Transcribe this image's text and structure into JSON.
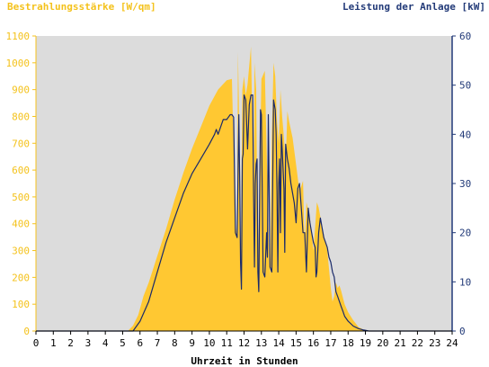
{
  "chart_data": {
    "type": "area",
    "left_axis_title": "Bestrahlungsstärke [W/qm]",
    "right_axis_title": "Leistung der Anlage [kW]",
    "xlabel": "Uhrzeit in Stunden",
    "xlim": [
      0,
      24
    ],
    "xticks": [
      "0",
      "1",
      "2",
      "3",
      "4",
      "5",
      "6",
      "7",
      "8",
      "9",
      "10",
      "11",
      "12",
      "13",
      "14",
      "15",
      "16",
      "17",
      "18",
      "19",
      "20",
      "21",
      "22",
      "23",
      "24"
    ],
    "ylim_left": [
      0,
      1100
    ],
    "yticks_left": [
      "0",
      "100",
      "200",
      "300",
      "400",
      "500",
      "600",
      "700",
      "800",
      "900",
      "1000",
      "1100"
    ],
    "ylim_right": [
      0,
      60
    ],
    "yticks_right": [
      "0",
      "10",
      "20",
      "30",
      "40",
      "50",
      "60"
    ],
    "grid": false,
    "colors": {
      "irradiance_fill": "#ffc832",
      "power_line": "#1a2a6a",
      "plot_background": "#dcdcdc",
      "left_axis": "#f4c21c",
      "right_axis": "#223a78"
    },
    "series": [
      {
        "name": "Bestrahlungsstärke [W/qm]",
        "axis": "left",
        "style": "area",
        "x": [
          0,
          5.3,
          5.6,
          5.9,
          6.2,
          6.5,
          7,
          7.5,
          8,
          8.5,
          9,
          9.5,
          10,
          10.5,
          11,
          11.3,
          11.5,
          11.6,
          11.65,
          11.7,
          11.8,
          11.9,
          12,
          12.1,
          12.2,
          12.4,
          12.5,
          12.55,
          12.6,
          12.7,
          12.8,
          13,
          13.2,
          13.4,
          13.5,
          13.6,
          13.7,
          13.8,
          13.9,
          14,
          14.1,
          14.2,
          14.3,
          14.4,
          14.5,
          14.6,
          14.8,
          15,
          15.2,
          15.4,
          15.5,
          15.6,
          15.8,
          16,
          16.2,
          16.3,
          16.5,
          16.8,
          17,
          17.1,
          17.2,
          17.3,
          17.4,
          17.5,
          17.6,
          17.8,
          18,
          18.3,
          18.6,
          18.9,
          19.2,
          19.5,
          24
        ],
        "y": [
          0,
          0,
          20,
          60,
          130,
          180,
          280,
          380,
          490,
          590,
          680,
          760,
          840,
          900,
          935,
          940,
          400,
          350,
          1040,
          860,
          150,
          900,
          950,
          880,
          920,
          1060,
          700,
          360,
          1000,
          900,
          210,
          940,
          970,
          400,
          200,
          720,
          1000,
          950,
          780,
          700,
          900,
          800,
          720,
          620,
          820,
          780,
          720,
          620,
          520,
          560,
          320,
          480,
          420,
          300,
          480,
          460,
          390,
          300,
          160,
          110,
          130,
          180,
          160,
          170,
          150,
          100,
          70,
          40,
          15,
          5,
          0,
          0,
          0
        ]
      },
      {
        "name": "Leistung der Anlage [kW]",
        "axis": "right",
        "style": "line",
        "x": [
          0,
          5.6,
          6,
          6.5,
          7,
          7.5,
          8,
          8.5,
          9,
          9.5,
          10,
          10.3,
          10.4,
          10.5,
          10.8,
          11,
          11.2,
          11.3,
          11.4,
          11.5,
          11.6,
          11.7,
          11.75,
          11.8,
          11.85,
          11.9,
          11.95,
          12,
          12.1,
          12.2,
          12.3,
          12.4,
          12.5,
          12.55,
          12.6,
          12.65,
          12.7,
          12.75,
          12.8,
          12.85,
          12.9,
          12.95,
          13,
          13.1,
          13.2,
          13.3,
          13.35,
          13.4,
          13.5,
          13.6,
          13.7,
          13.8,
          13.85,
          13.9,
          13.95,
          14,
          14.05,
          14.1,
          14.15,
          14.2,
          14.3,
          14.35,
          14.4,
          14.5,
          14.6,
          14.7,
          14.8,
          14.9,
          15,
          15.1,
          15.2,
          15.3,
          15.4,
          15.5,
          15.6,
          15.7,
          15.8,
          15.9,
          16,
          16.1,
          16.15,
          16.2,
          16.3,
          16.4,
          16.5,
          16.6,
          16.7,
          16.8,
          16.9,
          17,
          17.1,
          17.2,
          17.3,
          17.4,
          17.5,
          17.6,
          17.7,
          17.8,
          18,
          18.3,
          18.6,
          18.9,
          19.2,
          19.5,
          24
        ],
        "y": [
          0,
          0,
          2,
          6,
          12,
          18,
          23,
          28,
          32,
          35,
          38,
          40,
          41,
          40,
          43,
          43,
          44,
          44,
          43.5,
          20,
          19,
          44,
          30,
          14,
          8.5,
          35,
          36,
          48,
          47,
          37,
          46,
          48,
          48,
          28,
          13,
          30,
          34,
          35,
          12,
          8,
          28,
          45,
          44,
          12,
          11,
          20,
          15,
          44,
          13,
          12,
          47,
          45,
          40,
          28,
          12,
          30,
          35,
          20,
          40,
          37,
          29,
          16,
          38,
          35,
          33,
          30,
          28,
          26,
          22,
          29,
          30,
          25,
          20,
          20,
          12,
          25,
          22,
          20,
          18,
          17,
          11,
          12,
          20,
          23,
          21,
          19,
          18,
          17,
          15,
          14,
          12,
          11,
          8,
          7,
          6,
          5,
          4,
          3,
          2,
          1,
          0.5,
          0.2,
          0,
          0,
          0
        ]
      }
    ]
  }
}
